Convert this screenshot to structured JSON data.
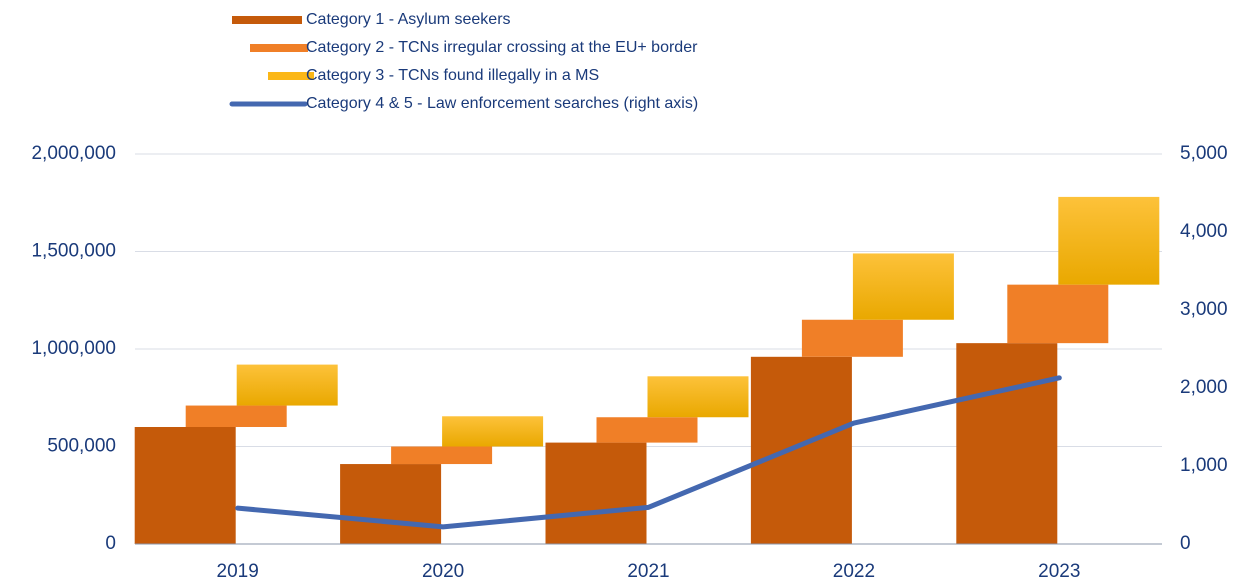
{
  "chart_data": {
    "type": "offset_stacked_bar_line",
    "categories": [
      "2019",
      "2020",
      "2021",
      "2022",
      "2023"
    ],
    "series": [
      {
        "name": "Category 1 - Asylum seekers",
        "color": "#c55a0a",
        "values": [
          600000,
          410000,
          520000,
          960000,
          1030000
        ]
      },
      {
        "name": "Category 2 - TCNs irregular crossing at the EU+ border",
        "color": "#f07f27",
        "values": [
          110000,
          90000,
          130000,
          190000,
          300000
        ]
      },
      {
        "name": "Category 3 - TCNs found illegally in a MS",
        "color": "#fbb717",
        "values": [
          210000,
          155000,
          210000,
          340000,
          450000
        ]
      },
      {
        "name": "Category 4 & 5 - Law enforcement searches (right axis)",
        "color": "#4468b0",
        "axis": "y2",
        "values": [
          460,
          220,
          470,
          1550,
          2130
        ]
      }
    ],
    "ylim": [
      0,
      2000000
    ],
    "yticks": [
      0,
      {
        "value": 500000,
        "label": "500,000"
      },
      {
        "value": 1000000,
        "label": "1,000,000"
      },
      {
        "value": 1500000,
        "label": "1,500,000"
      },
      {
        "value": 2000000,
        "label": "2,000,000"
      }
    ],
    "y2lim": [
      0,
      5000
    ],
    "y2ticks": [
      0,
      {
        "value": 1000,
        "label": "1,000"
      },
      {
        "value": 2000,
        "label": "2,000"
      },
      {
        "value": 3000,
        "label": "3,000"
      },
      {
        "value": 4000,
        "label": "4,000"
      },
      {
        "value": 5000,
        "label": "5,000"
      }
    ],
    "grid": true
  }
}
